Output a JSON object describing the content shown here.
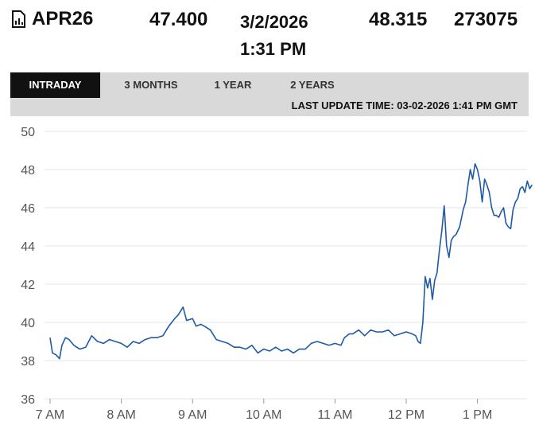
{
  "header": {
    "symbol": "APR26",
    "last": "47.400",
    "date": "3/2/2026",
    "time": "1:31 PM",
    "prior": "48.315",
    "volume": "273075",
    "icon": "document-chart-icon"
  },
  "tabs": [
    {
      "label": "INTRADAY",
      "active": true
    },
    {
      "label": "3 MONTHS",
      "active": false
    },
    {
      "label": "1 YEAR",
      "active": false
    },
    {
      "label": "2 YEARS",
      "active": false
    }
  ],
  "last_update": "LAST UPDATE TIME: 03-02-2026 1:41 PM GMT",
  "colors": {
    "line": "#1f5aa6",
    "grid": "#e6e6e6",
    "tabbar": "#d9d9d9",
    "active_tab": "#111111"
  },
  "chart_data": {
    "type": "line",
    "x_labels": [
      "7 AM",
      "8 AM",
      "9 AM",
      "10 AM",
      "11 AM",
      "12 PM",
      "1 PM"
    ],
    "y_ticks": [
      36,
      38,
      40,
      42,
      44,
      46,
      48,
      50
    ],
    "ylim": [
      36,
      50
    ],
    "grid": true,
    "series": [
      {
        "points": [
          [
            "7:00",
            39.2
          ],
          [
            "7:02",
            38.4
          ],
          [
            "7:05",
            38.3
          ],
          [
            "7:08",
            38.1
          ],
          [
            "7:10",
            38.8
          ],
          [
            "7:13",
            39.2
          ],
          [
            "7:16",
            39.1
          ],
          [
            "7:20",
            38.8
          ],
          [
            "7:25",
            38.6
          ],
          [
            "7:30",
            38.7
          ],
          [
            "7:35",
            39.3
          ],
          [
            "7:40",
            39.0
          ],
          [
            "7:45",
            38.9
          ],
          [
            "7:50",
            39.1
          ],
          [
            "7:55",
            39.0
          ],
          [
            "8:00",
            38.9
          ],
          [
            "8:05",
            38.7
          ],
          [
            "8:10",
            39.0
          ],
          [
            "8:15",
            38.9
          ],
          [
            "8:20",
            39.1
          ],
          [
            "8:25",
            39.2
          ],
          [
            "8:30",
            39.2
          ],
          [
            "8:35",
            39.3
          ],
          [
            "8:40",
            39.8
          ],
          [
            "8:45",
            40.2
          ],
          [
            "8:48",
            40.4
          ],
          [
            "8:52",
            40.8
          ],
          [
            "8:55",
            40.1
          ],
          [
            "9:00",
            40.2
          ],
          [
            "9:03",
            39.8
          ],
          [
            "9:07",
            39.9
          ],
          [
            "9:10",
            39.8
          ],
          [
            "9:15",
            39.6
          ],
          [
            "9:20",
            39.1
          ],
          [
            "9:25",
            39.0
          ],
          [
            "9:30",
            38.9
          ],
          [
            "9:35",
            38.7
          ],
          [
            "9:40",
            38.7
          ],
          [
            "9:45",
            38.6
          ],
          [
            "9:50",
            38.8
          ],
          [
            "9:55",
            38.4
          ],
          [
            "10:00",
            38.6
          ],
          [
            "10:05",
            38.5
          ],
          [
            "10:10",
            38.7
          ],
          [
            "10:15",
            38.5
          ],
          [
            "10:20",
            38.6
          ],
          [
            "10:25",
            38.4
          ],
          [
            "10:30",
            38.6
          ],
          [
            "10:35",
            38.6
          ],
          [
            "10:40",
            38.9
          ],
          [
            "10:45",
            39.0
          ],
          [
            "10:50",
            38.9
          ],
          [
            "10:55",
            38.8
          ],
          [
            "11:00",
            38.9
          ],
          [
            "11:05",
            38.8
          ],
          [
            "11:08",
            39.2
          ],
          [
            "11:12",
            39.4
          ],
          [
            "11:15",
            39.4
          ],
          [
            "11:20",
            39.6
          ],
          [
            "11:25",
            39.3
          ],
          [
            "11:30",
            39.6
          ],
          [
            "11:35",
            39.5
          ],
          [
            "11:40",
            39.5
          ],
          [
            "11:45",
            39.6
          ],
          [
            "11:50",
            39.3
          ],
          [
            "11:55",
            39.4
          ],
          [
            "12:00",
            39.5
          ],
          [
            "12:05",
            39.4
          ],
          [
            "12:08",
            39.3
          ],
          [
            "12:10",
            39.0
          ],
          [
            "12:12",
            38.9
          ],
          [
            "12:14",
            40.0
          ],
          [
            "12:16",
            42.4
          ],
          [
            "12:18",
            41.8
          ],
          [
            "12:20",
            42.3
          ],
          [
            "12:22",
            41.2
          ],
          [
            "12:24",
            42.2
          ],
          [
            "12:26",
            42.6
          ],
          [
            "12:28",
            43.8
          ],
          [
            "12:30",
            44.8
          ],
          [
            "12:32",
            46.1
          ],
          [
            "12:34",
            44.0
          ],
          [
            "12:36",
            43.4
          ],
          [
            "12:38",
            44.3
          ],
          [
            "12:40",
            44.5
          ],
          [
            "12:42",
            44.6
          ],
          [
            "12:45",
            45.0
          ],
          [
            "12:48",
            45.9
          ],
          [
            "12:50",
            46.3
          ],
          [
            "12:52",
            47.2
          ],
          [
            "12:54",
            48.0
          ],
          [
            "12:56",
            47.5
          ],
          [
            "12:58",
            48.3
          ],
          [
            "13:00",
            48.0
          ],
          [
            "13:02",
            47.4
          ],
          [
            "13:04",
            46.3
          ],
          [
            "13:06",
            47.5
          ],
          [
            "13:08",
            47.2
          ],
          [
            "13:10",
            46.8
          ],
          [
            "13:12",
            46.0
          ],
          [
            "13:14",
            45.6
          ],
          [
            "13:16",
            45.6
          ],
          [
            "13:18",
            45.5
          ],
          [
            "13:20",
            45.8
          ],
          [
            "13:22",
            46.0
          ],
          [
            "13:24",
            45.2
          ],
          [
            "13:26",
            45.0
          ],
          [
            "13:28",
            44.9
          ],
          [
            "13:30",
            45.9
          ],
          [
            "13:32",
            46.3
          ],
          [
            "13:34",
            46.5
          ],
          [
            "13:36",
            47.0
          ],
          [
            "13:38",
            47.1
          ],
          [
            "13:40",
            46.8
          ],
          [
            "13:42",
            47.4
          ],
          [
            "13:44",
            47.0
          ],
          [
            "13:46",
            47.2
          ]
        ]
      }
    ]
  }
}
